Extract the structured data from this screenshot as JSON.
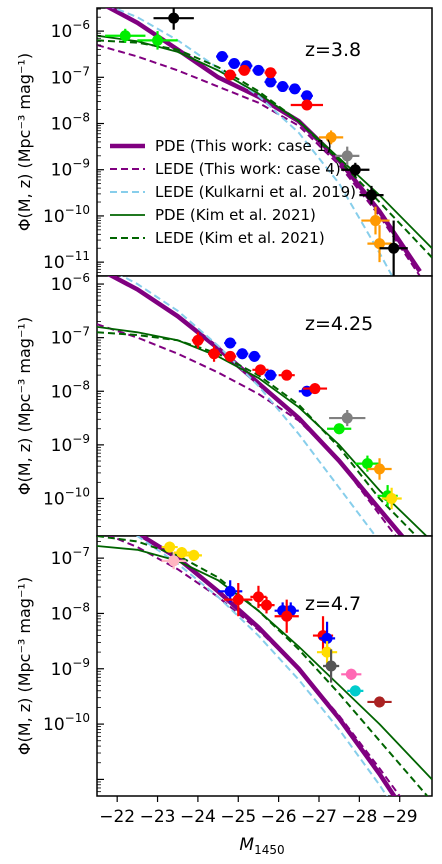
{
  "chart_data": {
    "type": "line",
    "xlabel": "M",
    "xlabel_sub": "1450",
    "x_ticks": [
      "−22",
      "−23",
      "−24",
      "−25",
      "−26",
      "−27",
      "−28",
      "−29"
    ],
    "xlim": [
      -21.5,
      -29.8
    ],
    "legend_location": "upper panel, left",
    "colors": {
      "pde_this_work": "#800080",
      "lede_this_work": "#800080",
      "lede_kulkarni": "#87ceeb",
      "pde_kim": "#006400",
      "lede_kim": "#006400"
    },
    "legend": [
      {
        "label": "PDE (This work: case 1)",
        "color": "#800080",
        "style": "thick-solid"
      },
      {
        "label": "LEDE (This work: case 4)",
        "color": "#800080",
        "style": "dashed"
      },
      {
        "label": "LEDE (Kulkarni et al. 2019)",
        "color": "#87ceeb",
        "style": "dashed"
      },
      {
        "label": "PDE (Kim et al. 2021)",
        "color": "#006400",
        "style": "solid"
      },
      {
        "label": "LEDE (Kim et al. 2021)",
        "color": "#006400",
        "style": "dashed"
      }
    ],
    "panels": [
      {
        "z_label": "z=3.8",
        "ylabel": "Φ(M, z) (Mpc⁻³ mag⁻¹)",
        "ylim_log10": [
          -11.3,
          -5.5
        ],
        "y_ticks_exp": [
          "-6",
          "-7",
          "-8",
          "-9",
          "-10",
          "-11"
        ],
        "series": [
          {
            "name": "PDE (This work: case 1)",
            "x": [
              -21.5,
              -22.5,
              -23.5,
              -24.5,
              -25.5,
              -26.5,
              -27.5,
              -28.5,
              -29.5
            ],
            "log_y": [
              -5.35,
              -5.82,
              -6.4,
              -7.0,
              -7.42,
              -7.95,
              -8.8,
              -9.9,
              -11.2
            ]
          },
          {
            "name": "LEDE (This work: case 4)",
            "x": [
              -21.5,
              -22.5,
              -23.5,
              -24.5,
              -25.5,
              -26.5,
              -27.5,
              -28.5,
              -29.5
            ],
            "log_y": [
              -6.3,
              -6.55,
              -6.85,
              -7.2,
              -7.55,
              -8.05,
              -8.9,
              -10.0,
              -11.3
            ]
          },
          {
            "name": "LEDE (Kulkarni et al. 2019)",
            "x": [
              -21.5,
              -22.5,
              -23.5,
              -24.5,
              -25.5,
              -26.5,
              -27.5,
              -28.5,
              -29.0
            ],
            "log_y": [
              -5.35,
              -5.7,
              -6.2,
              -6.8,
              -7.4,
              -8.2,
              -9.3,
              -10.8,
              -11.6
            ]
          },
          {
            "name": "PDE (Kim et al. 2021)",
            "x": [
              -21.5,
              -22.5,
              -23.5,
              -24.5,
              -25.5,
              -26.5,
              -27.5,
              -28.5,
              -29.8
            ],
            "log_y": [
              -6.1,
              -6.22,
              -6.45,
              -6.85,
              -7.35,
              -7.95,
              -8.75,
              -9.55,
              -10.7
            ]
          },
          {
            "name": "LEDE (Kim et al. 2021)",
            "x": [
              -21.5,
              -22.5,
              -23.5,
              -24.5,
              -25.5,
              -26.5,
              -27.5,
              -28.5,
              -29.8
            ],
            "log_y": [
              -6.2,
              -6.25,
              -6.4,
              -6.78,
              -7.3,
              -7.95,
              -8.8,
              -9.7,
              -10.9
            ]
          }
        ],
        "points": [
          {
            "x": -22.2,
            "log_y": -6.1,
            "xerr": 0.5,
            "yerr": 0.15,
            "color": "#00ee00"
          },
          {
            "x": -23.0,
            "log_y": -6.2,
            "xerr": 0.5,
            "yerr": 0.2,
            "color": "#00ee00"
          },
          {
            "x": -23.4,
            "log_y": -5.72,
            "xerr": 0.5,
            "yerr": 0.25,
            "color": "#000000"
          },
          {
            "x": -24.6,
            "log_y": -6.55,
            "xerr": 0.15,
            "yerr": 0.1,
            "color": "#0000ff"
          },
          {
            "x": -24.9,
            "log_y": -6.7,
            "xerr": 0.15,
            "yerr": 0.1,
            "color": "#0000ff"
          },
          {
            "x": -25.2,
            "log_y": -6.75,
            "xerr": 0.15,
            "yerr": 0.1,
            "color": "#0000ff"
          },
          {
            "x": -25.5,
            "log_y": -6.85,
            "xerr": 0.15,
            "yerr": 0.1,
            "color": "#0000ff"
          },
          {
            "x": -25.8,
            "log_y": -7.1,
            "xerr": 0.15,
            "yerr": 0.1,
            "color": "#0000ff"
          },
          {
            "x": -26.1,
            "log_y": -7.2,
            "xerr": 0.15,
            "yerr": 0.1,
            "color": "#0000ff"
          },
          {
            "x": -26.4,
            "log_y": -7.25,
            "xerr": 0.15,
            "yerr": 0.1,
            "color": "#0000ff"
          },
          {
            "x": -26.7,
            "log_y": -7.4,
            "xerr": 0.15,
            "yerr": 0.1,
            "color": "#0000ff"
          },
          {
            "x": -24.8,
            "log_y": -6.95,
            "xerr": 0.15,
            "yerr": 0.1,
            "color": "#ff0000"
          },
          {
            "x": -25.15,
            "log_y": -6.85,
            "xerr": 0.15,
            "yerr": 0.1,
            "color": "#ff0000"
          },
          {
            "x": -25.8,
            "log_y": -6.9,
            "xerr": 0.15,
            "yerr": 0.1,
            "color": "#ff0000"
          },
          {
            "x": -26.7,
            "log_y": -7.6,
            "xerr": 0.4,
            "yerr": 0.1,
            "color": "#ff0000"
          },
          {
            "x": -27.3,
            "log_y": -8.3,
            "xerr": 0.3,
            "yerr": 0.15,
            "color": "#ff9900"
          },
          {
            "x": -27.7,
            "log_y": -8.7,
            "xerr": 0.3,
            "yerr": 0.2,
            "color": "#808080"
          },
          {
            "x": -27.9,
            "log_y": -9.0,
            "xerr": 0.35,
            "yerr": 0.15,
            "color": "#000000"
          },
          {
            "x": -28.3,
            "log_y": -9.55,
            "xerr": 0.3,
            "yerr": 0.2,
            "color": "#000000"
          },
          {
            "x": -28.4,
            "log_y": -10.1,
            "xerr": 0.35,
            "yerr": 0.3,
            "color": "#ff9900"
          },
          {
            "x": -28.5,
            "log_y": -10.6,
            "xerr": 0.3,
            "yerr": 0.4,
            "color": "#ff9900"
          },
          {
            "x": -28.85,
            "log_y": -10.7,
            "xerr": 0.35,
            "yerr": 0.6,
            "color": "#000000"
          }
        ]
      },
      {
        "z_label": "z=4.25",
        "ylabel": "Φ(M, z) (Mpc⁻³ mag⁻¹)",
        "ylim_log10": [
          -10.7,
          -5.85
        ],
        "y_ticks_exp": [
          "-6",
          "-7",
          "-8",
          "-9",
          "-10"
        ],
        "series": [
          {
            "name": "PDE (This work: case 1)",
            "x": [
              -21.5,
              -22.5,
              -23.5,
              -24.5,
              -25.5,
              -26.5,
              -27.5,
              -28.5,
              -29.5
            ],
            "log_y": [
              -5.7,
              -6.1,
              -6.6,
              -7.2,
              -7.85,
              -8.5,
              -9.3,
              -10.2,
              -11.1
            ]
          },
          {
            "name": "LEDE (This work: case 4)",
            "x": [
              -21.5,
              -22.5,
              -23.5,
              -24.5,
              -25.5,
              -26.5,
              -27.5,
              -28.5,
              -29.5
            ],
            "log_y": [
              -6.75,
              -7.0,
              -7.3,
              -7.65,
              -8.05,
              -8.55,
              -9.3,
              -10.3,
              -11.3
            ]
          },
          {
            "name": "LEDE (Kulkarni et al. 2019)",
            "x": [
              -21.5,
              -22.5,
              -23.5,
              -24.5,
              -25.5,
              -26.5,
              -27.5,
              -28.5,
              -29.0
            ],
            "log_y": [
              -5.6,
              -6.0,
              -6.5,
              -7.15,
              -7.9,
              -8.8,
              -9.8,
              -10.8,
              -11.3
            ]
          },
          {
            "name": "PDE (Kim et al. 2021)",
            "x": [
              -21.5,
              -22.5,
              -23.5,
              -24.5,
              -25.5,
              -26.5,
              -27.5,
              -28.5,
              -29.8
            ],
            "log_y": [
              -6.8,
              -6.9,
              -7.05,
              -7.35,
              -7.75,
              -8.3,
              -9.0,
              -9.85,
              -10.8
            ]
          },
          {
            "name": "LEDE (Kim et al. 2021)",
            "x": [
              -21.5,
              -22.5,
              -23.5,
              -24.5,
              -25.5,
              -26.5,
              -27.5,
              -28.5,
              -29.8
            ],
            "log_y": [
              -6.9,
              -6.95,
              -7.05,
              -7.3,
              -7.7,
              -8.25,
              -9.05,
              -10.0,
              -11.0
            ]
          }
        ],
        "points": [
          {
            "x": -24.0,
            "log_y": -7.05,
            "xerr": 0.15,
            "yerr": 0.15,
            "color": "#ff0000"
          },
          {
            "x": -24.4,
            "log_y": -7.3,
            "xerr": 0.15,
            "yerr": 0.15,
            "color": "#ff0000"
          },
          {
            "x": -24.8,
            "log_y": -7.1,
            "xerr": 0.15,
            "yerr": 0.1,
            "color": "#0000ff"
          },
          {
            "x": -24.8,
            "log_y": -7.35,
            "xerr": 0.15,
            "yerr": 0.1,
            "color": "#ff0000"
          },
          {
            "x": -25.1,
            "log_y": -7.3,
            "xerr": 0.15,
            "yerr": 0.1,
            "color": "#0000ff"
          },
          {
            "x": -25.4,
            "log_y": -7.35,
            "xerr": 0.15,
            "yerr": 0.1,
            "color": "#0000ff"
          },
          {
            "x": -25.55,
            "log_y": -7.6,
            "xerr": 0.2,
            "yerr": 0.1,
            "color": "#ff0000"
          },
          {
            "x": -25.8,
            "log_y": -7.7,
            "xerr": 0.15,
            "yerr": 0.1,
            "color": "#0000ff"
          },
          {
            "x": -26.2,
            "log_y": -7.7,
            "xerr": 0.2,
            "yerr": 0.1,
            "color": "#ff0000"
          },
          {
            "x": -26.7,
            "log_y": -8.0,
            "xerr": 0.2,
            "yerr": 0.1,
            "color": "#0000ff"
          },
          {
            "x": -26.9,
            "log_y": -7.95,
            "xerr": 0.3,
            "yerr": 0.1,
            "color": "#ff0000"
          },
          {
            "x": -27.7,
            "log_y": -8.5,
            "xerr": 0.45,
            "yerr": 0.15,
            "color": "#808080"
          },
          {
            "x": -27.5,
            "log_y": -8.7,
            "xerr": 0.3,
            "yerr": 0.1,
            "color": "#00ee00"
          },
          {
            "x": -28.2,
            "log_y": -9.35,
            "xerr": 0.3,
            "yerr": 0.15,
            "color": "#00ee00"
          },
          {
            "x": -28.5,
            "log_y": -9.45,
            "xerr": 0.3,
            "yerr": 0.2,
            "color": "#ff9900"
          },
          {
            "x": -28.7,
            "log_y": -9.95,
            "xerr": 0.25,
            "yerr": 0.2,
            "color": "#00ee00"
          },
          {
            "x": -28.8,
            "log_y": -10.0,
            "xerr": 0.25,
            "yerr": 0.2,
            "color": "#ffdd00"
          }
        ]
      },
      {
        "z_label": "z=4.7",
        "ylabel": "Φ(M, z) (Mpc⁻³ mag⁻¹)",
        "ylim_log10": [
          -11.3,
          -6.6
        ],
        "y_ticks_exp": [
          "-7",
          "-8",
          "-9",
          "-10"
        ],
        "series": [
          {
            "name": "PDE (This work: case 1)",
            "x": [
              -21.5,
              -22.5,
              -23.5,
              -24.5,
              -25.5,
              -26.5,
              -27.5,
              -28.5,
              -29.5
            ],
            "log_y": [
              -6.25,
              -6.55,
              -7.0,
              -7.6,
              -8.25,
              -9.0,
              -9.9,
              -10.9,
              -12.0
            ]
          },
          {
            "name": "LEDE (This work: case 4)",
            "x": [
              -21.5,
              -22.5,
              -23.5,
              -24.5,
              -25.5,
              -26.5,
              -27.5,
              -28.5,
              -29.5
            ],
            "log_y": [
              -6.5,
              -6.8,
              -7.2,
              -7.7,
              -8.3,
              -9.0,
              -9.85,
              -10.8,
              -11.8
            ]
          },
          {
            "name": "LEDE (Kulkarni et al. 2019)",
            "x": [
              -21.5,
              -22.5,
              -23.5,
              -24.5,
              -25.5,
              -26.5,
              -27.5,
              -28.5,
              -29.5
            ],
            "log_y": [
              -6.25,
              -6.6,
              -7.1,
              -7.7,
              -8.4,
              -9.2,
              -10.1,
              -11.1,
              -12.2
            ]
          },
          {
            "name": "PDE (Kim et al. 2021)",
            "x": [
              -21.5,
              -22.5,
              -23.5,
              -24.5,
              -25.5,
              -26.5,
              -27.5,
              -28.5,
              -29.8
            ],
            "log_y": [
              -6.78,
              -6.85,
              -7.05,
              -7.4,
              -7.95,
              -8.6,
              -9.3,
              -10.0,
              -11.0
            ]
          },
          {
            "name": "LEDE (Kim et al. 2021)",
            "x": [
              -21.5,
              -22.5,
              -23.5,
              -24.5,
              -25.5,
              -26.5,
              -27.5,
              -28.5,
              -29.8
            ],
            "log_y": [
              -6.6,
              -6.7,
              -6.95,
              -7.35,
              -7.95,
              -8.65,
              -9.45,
              -10.3,
              -11.4
            ]
          }
        ],
        "points": [
          {
            "x": -23.3,
            "log_y": -6.8,
            "xerr": 0.2,
            "yerr": 0.1,
            "color": "#ffdd00"
          },
          {
            "x": -23.4,
            "log_y": -7.05,
            "xerr": 0.3,
            "yerr": 0.15,
            "color": "#ffb6c1"
          },
          {
            "x": -23.6,
            "log_y": -6.9,
            "xerr": 0.2,
            "yerr": 0.1,
            "color": "#ffdd00"
          },
          {
            "x": -23.9,
            "log_y": -6.95,
            "xerr": 0.2,
            "yerr": 0.1,
            "color": "#ffdd00"
          },
          {
            "x": -24.8,
            "log_y": -7.6,
            "xerr": 0.3,
            "yerr": 0.2,
            "color": "#0000ff"
          },
          {
            "x": -25.0,
            "log_y": -7.75,
            "xerr": 0.35,
            "yerr": 0.3,
            "color": "#ff0000"
          },
          {
            "x": -25.5,
            "log_y": -7.7,
            "xerr": 0.2,
            "yerr": 0.2,
            "color": "#ff0000"
          },
          {
            "x": -25.7,
            "log_y": -7.85,
            "xerr": 0.2,
            "yerr": 0.15,
            "color": "#ff0000"
          },
          {
            "x": -26.1,
            "log_y": -7.95,
            "xerr": 0.2,
            "yerr": 0.15,
            "color": "#0000ff"
          },
          {
            "x": -26.3,
            "log_y": -7.95,
            "xerr": 0.2,
            "yerr": 0.15,
            "color": "#0000ff"
          },
          {
            "x": -26.2,
            "log_y": -8.05,
            "xerr": 0.3,
            "yerr": 0.3,
            "color": "#ff0000"
          },
          {
            "x": -27.1,
            "log_y": -8.4,
            "xerr": 0.25,
            "yerr": 0.35,
            "color": "#ff0000"
          },
          {
            "x": -27.2,
            "log_y": -8.45,
            "xerr": 0.2,
            "yerr": 0.3,
            "color": "#0000ff"
          },
          {
            "x": -27.2,
            "log_y": -8.7,
            "xerr": 0.25,
            "yerr": 0.2,
            "color": "#ffdd00"
          },
          {
            "x": -27.3,
            "log_y": -8.95,
            "xerr": 0.2,
            "yerr": 0.3,
            "color": "#555555"
          },
          {
            "x": -27.8,
            "log_y": -9.1,
            "xerr": 0.25,
            "yerr": 0.1,
            "color": "#ff69b4"
          },
          {
            "x": -27.9,
            "log_y": -9.4,
            "xerr": 0.2,
            "yerr": 0.1,
            "color": "#00cccc"
          },
          {
            "x": -28.5,
            "log_y": -9.6,
            "xerr": 0.3,
            "yerr": 0.1,
            "color": "#aa2222"
          }
        ]
      }
    ]
  }
}
